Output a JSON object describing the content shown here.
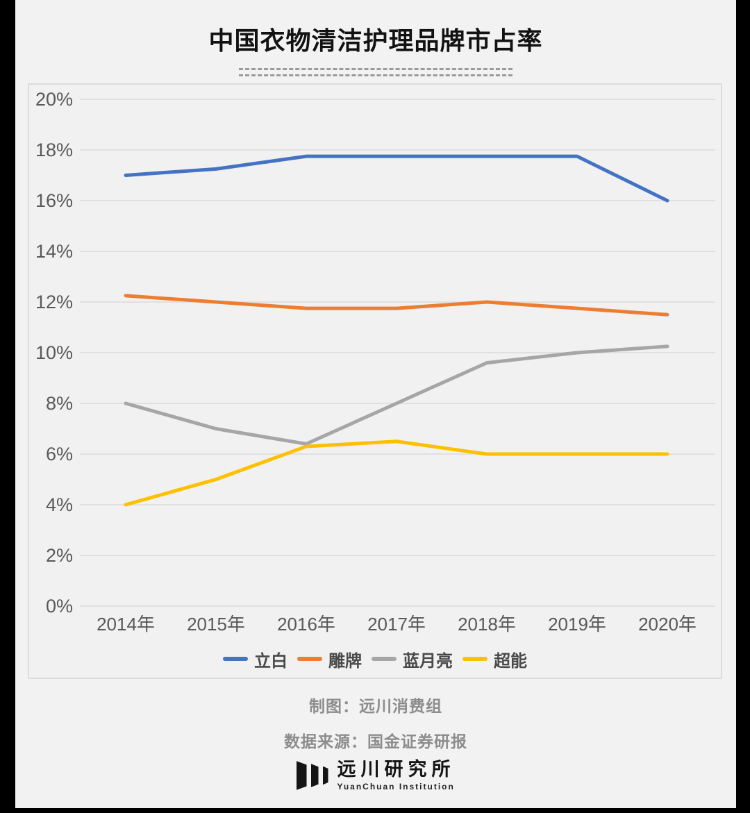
{
  "page": {
    "title": "中国衣物清洁护理品牌市占率",
    "frame_color": "#000000",
    "background_color": "#f1f2f1"
  },
  "chart_data": {
    "type": "line",
    "categories": [
      "2014年",
      "2015年",
      "2016年",
      "2017年",
      "2018年",
      "2019年",
      "2020年"
    ],
    "series": [
      {
        "name": "立白",
        "color": "#4472C4",
        "values": [
          17.0,
          17.25,
          17.75,
          17.75,
          17.75,
          17.75,
          16.0
        ]
      },
      {
        "name": "雕牌",
        "color": "#ED7D31",
        "values": [
          12.25,
          12.0,
          11.75,
          11.75,
          12.0,
          11.75,
          11.5
        ]
      },
      {
        "name": "蓝月亮",
        "color": "#A6A6A6",
        "values": [
          8.0,
          7.0,
          6.4,
          8.0,
          9.6,
          10.0,
          10.25
        ]
      },
      {
        "name": "超能",
        "color": "#FFC000",
        "values": [
          4.0,
          5.0,
          6.3,
          6.5,
          6.0,
          6.0,
          6.0
        ]
      }
    ],
    "title": "中国衣物清洁护理品牌市占率",
    "xlabel": "",
    "ylabel": "",
    "ylim": [
      0,
      20
    ],
    "ytick_step": 2,
    "ytick_suffix": "%",
    "grid": true,
    "legend_position": "bottom",
    "gridline_color": "#dadada",
    "tick_label_color": "#595959"
  },
  "footer": {
    "credit": "制图：远川消费组",
    "source": "数据来源：国金证券研报"
  },
  "logo": {
    "name": "远川研究所",
    "subtitle": "YuanChuan Institution"
  }
}
